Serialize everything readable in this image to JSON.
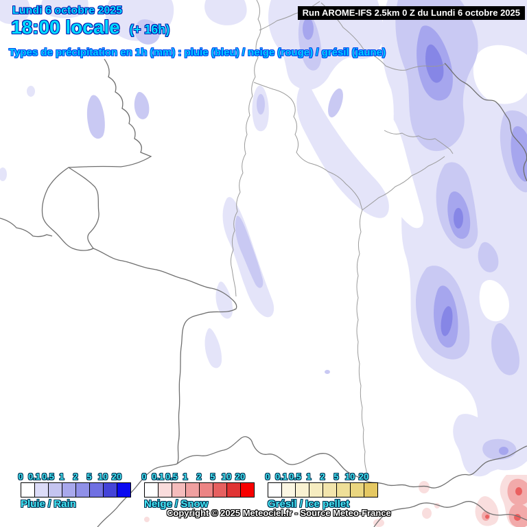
{
  "header": {
    "date": "Lundi 6 octobre 2025",
    "time": "18:00 locale",
    "offset": "(+ 16h)",
    "run_label": "Run AROME-IFS 2.5km 0 Z du Lundi 6 octobre 2025",
    "subtitle": "Types de précipitation en 1h (mm) : pluie (bleu) / neige (rouge) / grésil (jaune)"
  },
  "legends": [
    {
      "id": "rain",
      "name": "Pluie / Rain",
      "ticks": [
        "0",
        "0.1",
        "0.5",
        "1",
        "2",
        "5",
        "10",
        "20"
      ],
      "colors": [
        "#FFFFFF",
        "#DCDCF8",
        "#C4C4F0",
        "#A8A8EC",
        "#9090E8",
        "#7070E2",
        "#4444D8",
        "#0A0AF0"
      ]
    },
    {
      "id": "snow",
      "name": "Neige / Snow",
      "ticks": [
        "0",
        "0.1",
        "0.5",
        "1",
        "2",
        "5",
        "10",
        "20"
      ],
      "colors": [
        "#FFFFFF",
        "#FADCDC",
        "#F5BCBC",
        "#F0A0A0",
        "#EC8484",
        "#E66060",
        "#E03434",
        "#F80000"
      ]
    },
    {
      "id": "icepellet",
      "name": "Grésil / Ice pellet",
      "ticks": [
        "0",
        "0.1",
        "0.5",
        "1",
        "2",
        "5",
        "10",
        "20"
      ],
      "colors": [
        "#FFFFFF",
        "#FBF7E3",
        "#F9F2D2",
        "#F6ECC0",
        "#F2E5AC",
        "#EFDF98",
        "#EAD680",
        "#E5C862"
      ]
    }
  ],
  "footer": {
    "copyright": "Copyright © 2025 Meteociel.fr - Source Meteo-France"
  },
  "map": {
    "region": "Northeast France / Germany / Switzerland",
    "precip_levels_mm": [
      0,
      0.1,
      0.5,
      1,
      2,
      5,
      10,
      20
    ],
    "rain_shades": [
      "#E4E4F9",
      "#C9C9F3",
      "#A6A6EE",
      "#8686E6"
    ],
    "snow_shades": [
      "#F9DEDE",
      "#F2AAAA",
      "#EA6060"
    ],
    "border_colors": {
      "national": "#6F6F6F",
      "internal": "#9A9A9A"
    },
    "background": "#FFFFFF",
    "colors_meta": {
      "title_text": "#00DCFF",
      "title_outline": "#0018B0",
      "run_bg": "#000000",
      "run_text": "#FFFFFF",
      "legend_text": "#45E7F5"
    }
  }
}
